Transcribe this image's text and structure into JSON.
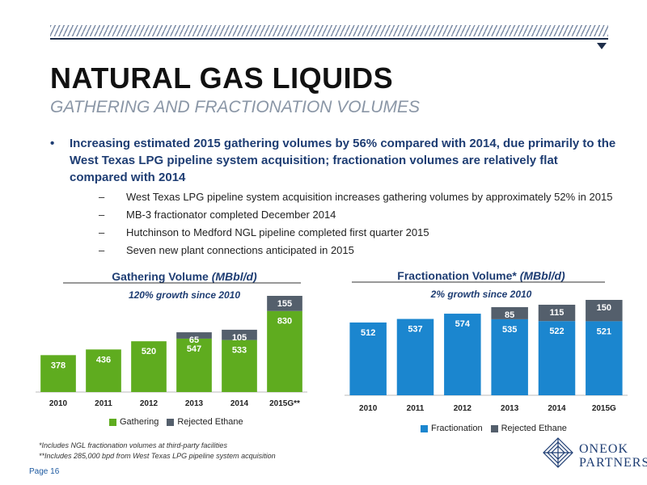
{
  "header": {
    "title": "NATURAL GAS LIQUIDS",
    "subtitle": "GATHERING AND FRACTIONATION VOLUMES"
  },
  "bullets": {
    "main_marker": "•",
    "main": "Increasing estimated 2015 gathering volumes by 56% compared with 2014, due primarily to the West Texas LPG pipeline system acquisition; fractionation volumes are relatively flat compared with 2014",
    "sub_marker": "–",
    "subs": [
      "West Texas LPG pipeline system acquisition increases gathering volumes by approximately 52% in 2015",
      "MB-3 fractionator completed December 2014",
      "Hutchinson to Medford NGL pipeline completed first quarter 2015",
      "Seven new plant connections anticipated in 2015"
    ]
  },
  "chart_data": [
    {
      "type": "bar",
      "stacked": true,
      "title": "Gathering Volume (MBbl/d)",
      "subtitle": "120% growth since 2010",
      "categories": [
        "2010",
        "2011",
        "2012",
        "2013",
        "2014",
        "2015G**"
      ],
      "series": [
        {
          "name": "Gathering",
          "values": [
            378,
            436,
            520,
            547,
            533,
            830
          ],
          "color": "#5fac1f"
        },
        {
          "name": "Rejected Ethane",
          "values": [
            0,
            0,
            0,
            65,
            105,
            155
          ],
          "color": "#545f6c"
        }
      ],
      "ylim": [
        0,
        1000
      ],
      "legend": "bottom"
    },
    {
      "type": "bar",
      "stacked": true,
      "title": "Fractionation Volume* (MBbl/d)",
      "subtitle": "2% growth since 2010",
      "categories": [
        "2010",
        "2011",
        "2012",
        "2013",
        "2014",
        "2015G"
      ],
      "series": [
        {
          "name": "Fractionation",
          "values": [
            512,
            537,
            574,
            535,
            522,
            521
          ],
          "color": "#1b86cf"
        },
        {
          "name": "Rejected Ethane",
          "values": [
            0,
            0,
            0,
            85,
            115,
            150
          ],
          "color": "#545f6c"
        }
      ],
      "ylim": [
        0,
        700
      ],
      "legend": "bottom"
    }
  ],
  "footnotes": [
    "*Includes NGL fractionation volumes at third-party facilities",
    "**Includes 285,000 bpd from West Texas LPG pipeline system acquisition"
  ],
  "page": "Page 16",
  "logo": {
    "line1": "ONEOK",
    "line2": "PARTNERS"
  }
}
